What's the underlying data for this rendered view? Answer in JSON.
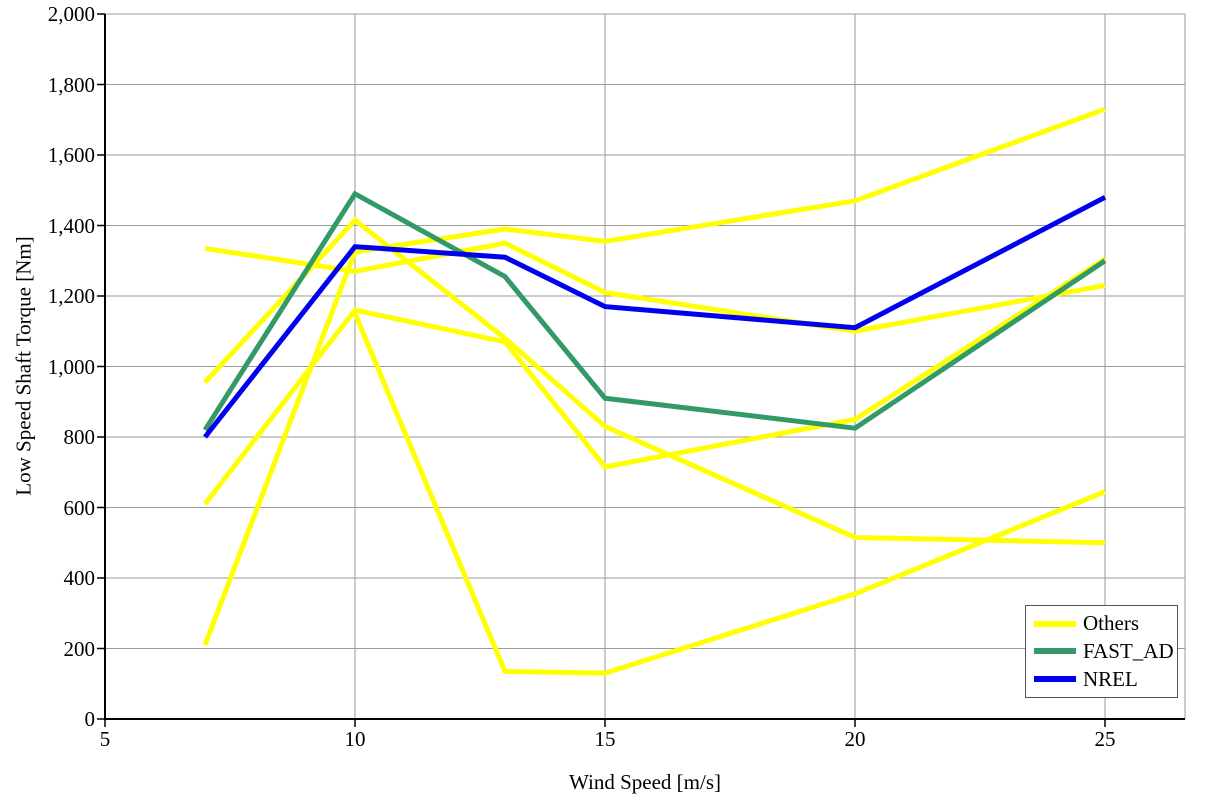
{
  "axes": {
    "x_label": "Wind Speed [m/s]",
    "y_label": "Low Speed Shaft Torque [Nm]",
    "x_ticks": [
      "5",
      "10",
      "15",
      "20",
      "25"
    ],
    "x_tick_values": [
      5,
      10,
      15,
      20,
      25
    ],
    "y_ticks": [
      "0",
      "200",
      "400",
      "600",
      "800",
      "1,000",
      "1,200",
      "1,400",
      "1,600",
      "1,800",
      "2,000"
    ],
    "y_tick_values": [
      0,
      200,
      400,
      600,
      800,
      1000,
      1200,
      1400,
      1600,
      1800,
      2000
    ]
  },
  "legend": {
    "items": [
      {
        "label": "Others",
        "color": "#FFFF00"
      },
      {
        "label": "FAST_AD",
        "color": "#339966"
      },
      {
        "label": "NREL",
        "color": "#0000EE"
      }
    ]
  },
  "colors": {
    "gridline": "#9a9a9a",
    "axis": "#000000",
    "others": "#FFFF00",
    "fast_ad": "#339966",
    "nrel": "#0000EE"
  },
  "chart_data": {
    "type": "line",
    "title": "",
    "xlabel": "Wind Speed [m/s]",
    "ylabel": "Low Speed Shaft Torque [Nm]",
    "x": [
      7,
      10,
      13,
      15,
      20,
      25
    ],
    "xlim": [
      5,
      26.6
    ],
    "ylim": [
      0,
      2000
    ],
    "grid": true,
    "legend_position": "lower right",
    "series": [
      {
        "name": "Others-1",
        "legend": "Others",
        "color": "#FFFF00",
        "values": [
          955,
          1415,
          1080,
          830,
          515,
          500
        ]
      },
      {
        "name": "Others-2",
        "legend": "Others",
        "color": "#FFFF00",
        "values": [
          210,
          1325,
          1390,
          1355,
          1470,
          1730
        ]
      },
      {
        "name": "Others-3",
        "legend": "Others",
        "color": "#FFFF00",
        "values": [
          1335,
          1270,
          1350,
          1210,
          1100,
          1230
        ]
      },
      {
        "name": "Others-4",
        "legend": "Others",
        "color": "#FFFF00",
        "values": [
          610,
          1160,
          1070,
          715,
          850,
          1305
        ]
      },
      {
        "name": "Others-5",
        "legend": "Others",
        "color": "#FFFF00",
        "values": [
          null,
          1150,
          135,
          130,
          355,
          645
        ]
      },
      {
        "name": "FAST_AD",
        "legend": "FAST_AD",
        "color": "#339966",
        "values": [
          820,
          1490,
          1255,
          910,
          825,
          1300
        ]
      },
      {
        "name": "NREL",
        "legend": "NREL",
        "color": "#0000EE",
        "values": [
          800,
          1340,
          1310,
          1170,
          1110,
          1480
        ]
      }
    ]
  }
}
